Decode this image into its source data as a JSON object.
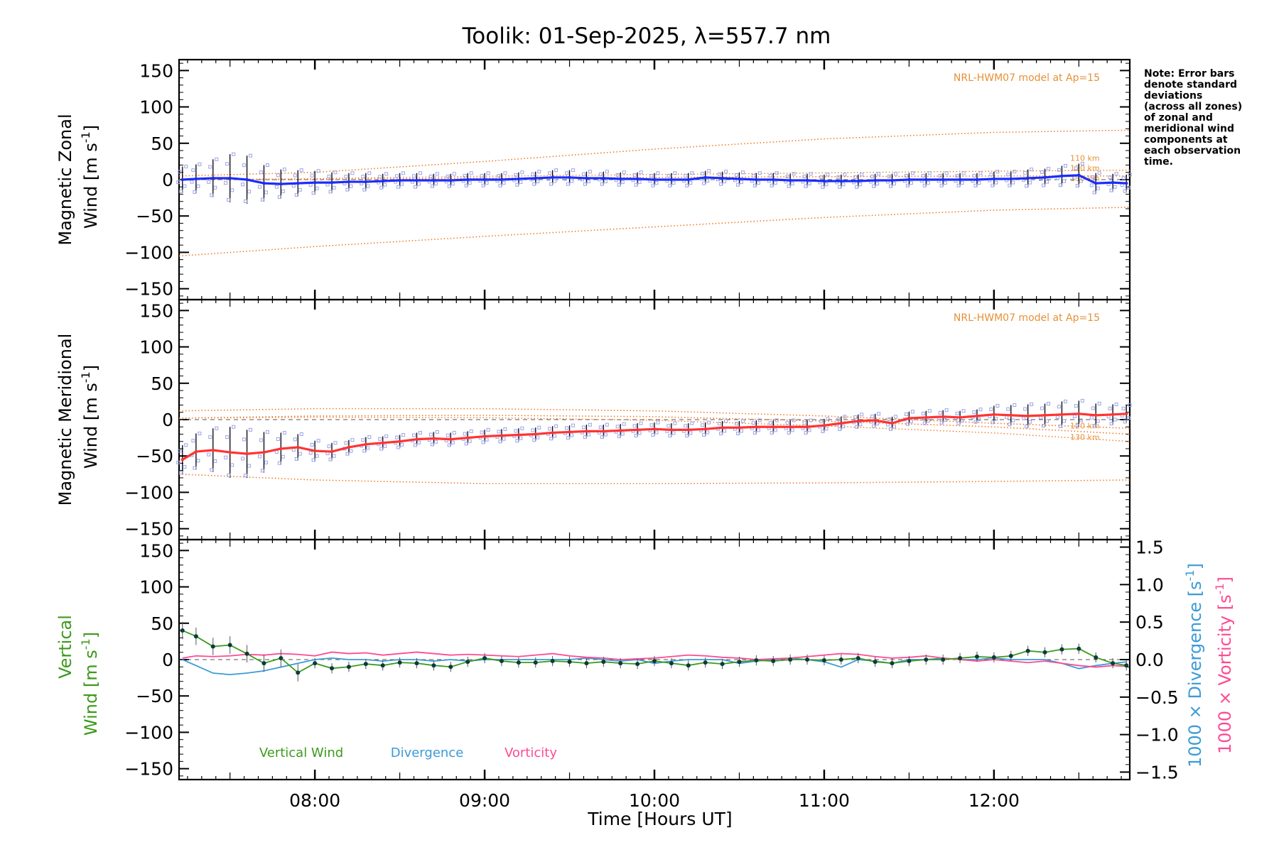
{
  "title": "Toolik: 01-Sep-2025, λ=557.7 nm",
  "note_lines": [
    "Note: Error bars",
    "denote standard",
    "deviations",
    "(across all zones)",
    "of zonal and",
    "meridional wind",
    "components at",
    "each observation",
    "time."
  ],
  "model_label": "NRL-HWM07 model at Ap=15",
  "altitude_labels": [
    "110 km",
    "120 km",
    "130 km"
  ],
  "xlabel": "Time [Hours UT]",
  "x_ticks": [
    "08:00",
    "09:00",
    "10:00",
    "11:00",
    "12:00"
  ],
  "legend": [
    "Vertical Wind",
    "Divergence",
    "Vorticity"
  ],
  "colors": {
    "zonal": "#1a2cff",
    "meridional": "#ff3333",
    "vertical": "#3c9a1c",
    "divergence": "#3b9bd6",
    "vorticity": "#ff4a92",
    "model": "#f07c2a",
    "samples": "#9aa4e8",
    "axis": "#000000"
  },
  "chart_data": [
    {
      "type": "line",
      "panel": "zonal",
      "ylabel": [
        "Magnetic Zonal",
        "Wind [m s",
        "-1",
        "]"
      ],
      "xlim": [
        7.2,
        12.8
      ],
      "ylim": [
        -165,
        165
      ],
      "yticks": [
        150,
        100,
        50,
        0,
        -50,
        -100,
        -150
      ],
      "x": [
        7.22,
        7.3,
        7.4,
        7.5,
        7.6,
        7.7,
        7.8,
        7.9,
        8.0,
        8.1,
        8.2,
        8.3,
        8.4,
        8.5,
        8.6,
        8.7,
        8.8,
        8.9,
        9.0,
        9.1,
        9.2,
        9.3,
        9.4,
        9.5,
        9.6,
        9.7,
        9.8,
        9.9,
        10.0,
        10.1,
        10.2,
        10.3,
        10.4,
        10.5,
        10.6,
        10.7,
        10.8,
        10.9,
        11.0,
        11.1,
        11.2,
        11.3,
        11.4,
        11.5,
        11.6,
        11.7,
        11.8,
        11.9,
        12.0,
        12.1,
        12.2,
        12.3,
        12.4,
        12.5,
        12.6,
        12.7,
        12.78
      ],
      "series": [
        {
          "name": "Zonal wind",
          "values": [
            0,
            1,
            2,
            2,
            0,
            -5,
            -6,
            -5,
            -4,
            -4,
            -3,
            -3,
            -2,
            -1,
            -1,
            -1,
            -1,
            0,
            0,
            0,
            1,
            2,
            3,
            3,
            2,
            2,
            1,
            1,
            0,
            0,
            0,
            3,
            2,
            1,
            0,
            0,
            -1,
            -1,
            -2,
            -2,
            -2,
            -1,
            -1,
            0,
            0,
            0,
            0,
            0,
            1,
            1,
            2,
            3,
            5,
            6,
            -5,
            -4,
            -5
          ]
        },
        {
          "name": "Zonal std dev",
          "values": [
            18,
            20,
            26,
            33,
            33,
            25,
            20,
            18,
            16,
            14,
            12,
            12,
            10,
            10,
            10,
            9,
            9,
            9,
            9,
            9,
            9,
            9,
            10,
            10,
            9,
            9,
            9,
            9,
            9,
            9,
            9,
            9,
            9,
            9,
            9,
            9,
            9,
            9,
            9,
            9,
            9,
            9,
            9,
            9,
            9,
            9,
            9,
            9,
            10,
            10,
            12,
            12,
            14,
            16,
            14,
            12,
            12
          ]
        }
      ],
      "model": {
        "x": [
          7.2,
          8.0,
          9.0,
          10.0,
          11.0,
          12.0,
          12.8
        ],
        "upper": [
          5,
          10,
          25,
          42,
          56,
          65,
          68
        ],
        "middle": [
          0,
          0,
          2,
          3,
          4,
          5,
          5
        ],
        "lower": [
          -105,
          -92,
          -78,
          -65,
          -52,
          -42,
          -38
        ]
      }
    },
    {
      "type": "line",
      "panel": "meridional",
      "ylabel": [
        "Magnetic Meridional",
        "Wind [m s",
        "-1",
        "]"
      ],
      "xlim": [
        7.2,
        12.8
      ],
      "ylim": [
        -165,
        165
      ],
      "yticks": [
        150,
        100,
        50,
        0,
        -50,
        -100,
        -150
      ],
      "x": [
        7.22,
        7.3,
        7.4,
        7.5,
        7.6,
        7.7,
        7.8,
        7.9,
        8.0,
        8.1,
        8.2,
        8.3,
        8.4,
        8.5,
        8.6,
        8.7,
        8.8,
        8.9,
        9.0,
        9.1,
        9.2,
        9.3,
        9.4,
        9.5,
        9.6,
        9.7,
        9.8,
        9.9,
        10.0,
        10.1,
        10.2,
        10.3,
        10.4,
        10.5,
        10.6,
        10.7,
        10.8,
        10.9,
        11.0,
        11.1,
        11.2,
        11.3,
        11.4,
        11.5,
        11.6,
        11.7,
        11.8,
        11.9,
        12.0,
        12.1,
        12.2,
        12.3,
        12.4,
        12.5,
        12.6,
        12.7,
        12.78
      ],
      "series": [
        {
          "name": "Meridional wind",
          "values": [
            -55,
            -44,
            -42,
            -45,
            -47,
            -45,
            -40,
            -38,
            -43,
            -44,
            -38,
            -34,
            -32,
            -30,
            -27,
            -26,
            -27,
            -25,
            -23,
            -22,
            -21,
            -20,
            -18,
            -17,
            -16,
            -16,
            -15,
            -14,
            -13,
            -14,
            -14,
            -13,
            -11,
            -11,
            -10,
            -10,
            -10,
            -10,
            -8,
            -5,
            -2,
            -1,
            -5,
            2,
            3,
            4,
            3,
            5,
            7,
            6,
            5,
            6,
            7,
            8,
            6,
            7,
            8
          ]
        },
        {
          "name": "Meridional std dev",
          "values": [
            20,
            25,
            30,
            35,
            33,
            28,
            22,
            18,
            14,
            12,
            10,
            10,
            9,
            9,
            9,
            9,
            9,
            9,
            9,
            9,
            9,
            9,
            9,
            9,
            9,
            9,
            9,
            9,
            9,
            9,
            9,
            9,
            9,
            9,
            9,
            9,
            9,
            9,
            9,
            9,
            9,
            9,
            9,
            9,
            9,
            9,
            9,
            9,
            12,
            14,
            16,
            16,
            18,
            18,
            16,
            14,
            12
          ]
        }
      ],
      "model": {
        "x": [
          7.2,
          8.0,
          9.0,
          10.0,
          11.0,
          12.0,
          12.8
        ],
        "upper": [
          12,
          15,
          15,
          12,
          5,
          -5,
          -12
        ],
        "middle": [
          2,
          5,
          6,
          4,
          -2,
          -10,
          -20
        ],
        "lower": [
          -75,
          -83,
          -88,
          -88,
          -87,
          -85,
          -83
        ]
      }
    },
    {
      "type": "line",
      "panel": "vertical",
      "ylabel": [
        "Vertical",
        "Wind [m s",
        "-1",
        "]"
      ],
      "right_ylabels": [
        {
          "text": "1000 × Divergence [s",
          "sup": "-1",
          "close": "]"
        },
        {
          "text": "1000 × Vorticity [s",
          "sup": "-1",
          "close": "]"
        }
      ],
      "xlim": [
        7.2,
        12.8
      ],
      "ylim": [
        -165,
        165
      ],
      "yticks": [
        150,
        100,
        50,
        0,
        -50,
        -100,
        -150
      ],
      "y2lim": [
        -1.6,
        1.6
      ],
      "y2ticks": [
        "1.5",
        "1.0",
        "0.5",
        "0.0",
        "−0.5",
        "−1.0",
        "−1.5"
      ],
      "x": [
        7.22,
        7.3,
        7.4,
        7.5,
        7.6,
        7.7,
        7.8,
        7.9,
        8.0,
        8.1,
        8.2,
        8.3,
        8.4,
        8.5,
        8.6,
        8.7,
        8.8,
        8.9,
        9.0,
        9.1,
        9.2,
        9.3,
        9.4,
        9.5,
        9.6,
        9.7,
        9.8,
        9.9,
        10.0,
        10.1,
        10.2,
        10.3,
        10.4,
        10.5,
        10.6,
        10.7,
        10.8,
        10.9,
        11.0,
        11.1,
        11.2,
        11.3,
        11.4,
        11.5,
        11.6,
        11.7,
        11.8,
        11.9,
        12.0,
        12.1,
        12.2,
        12.3,
        12.4,
        12.5,
        12.6,
        12.7,
        12.78
      ],
      "series": [
        {
          "name": "Vertical Wind",
          "axis": "left",
          "values": [
            40,
            32,
            18,
            20,
            8,
            -5,
            2,
            -18,
            -5,
            -12,
            -10,
            -6,
            -8,
            -4,
            -5,
            -8,
            -10,
            -3,
            2,
            -2,
            -4,
            -4,
            -2,
            -3,
            -5,
            -3,
            -5,
            -6,
            -2,
            -5,
            -8,
            -4,
            -6,
            -3,
            -1,
            -2,
            0,
            0,
            -1,
            0,
            2,
            -3,
            -5,
            -2,
            0,
            0,
            2,
            4,
            3,
            5,
            12,
            10,
            14,
            15,
            3,
            -5,
            -8
          ]
        },
        {
          "name": "Divergence",
          "axis": "right",
          "values": [
            0.0,
            -0.08,
            -0.18,
            -0.2,
            -0.18,
            -0.15,
            -0.1,
            -0.05,
            0.0,
            0.02,
            0.0,
            0.0,
            -0.02,
            0.0,
            0.0,
            -0.02,
            0.0,
            -0.02,
            0.0,
            0.0,
            0.0,
            0.0,
            0.0,
            0.0,
            0.02,
            0.0,
            -0.02,
            0.0,
            -0.05,
            -0.02,
            0.0,
            0.0,
            0.0,
            -0.05,
            -0.02,
            0.0,
            0.02,
            0.0,
            -0.03,
            -0.1,
            0.0,
            -0.02,
            -0.05,
            0.0,
            0.0,
            0.02,
            0.0,
            0.0,
            0.02,
            0.0,
            0.0,
            0.0,
            -0.05,
            -0.12,
            -0.08,
            -0.05,
            -0.03
          ]
        },
        {
          "name": "Vorticity",
          "axis": "right",
          "values": [
            0.02,
            0.05,
            0.04,
            0.05,
            0.07,
            0.06,
            0.08,
            0.07,
            0.05,
            0.1,
            0.08,
            0.09,
            0.06,
            0.08,
            0.1,
            0.08,
            0.06,
            0.07,
            0.06,
            0.05,
            0.04,
            0.06,
            0.08,
            0.05,
            0.03,
            0.02,
            0.0,
            0.01,
            0.02,
            0.04,
            0.06,
            0.05,
            0.03,
            0.02,
            0.0,
            0.01,
            0.02,
            0.04,
            0.06,
            0.08,
            0.07,
            0.04,
            0.02,
            0.03,
            0.05,
            0.02,
            0.0,
            -0.02,
            0.0,
            -0.02,
            -0.04,
            -0.02,
            -0.05,
            -0.08,
            -0.1,
            -0.08,
            -0.09
          ]
        }
      ]
    }
  ]
}
